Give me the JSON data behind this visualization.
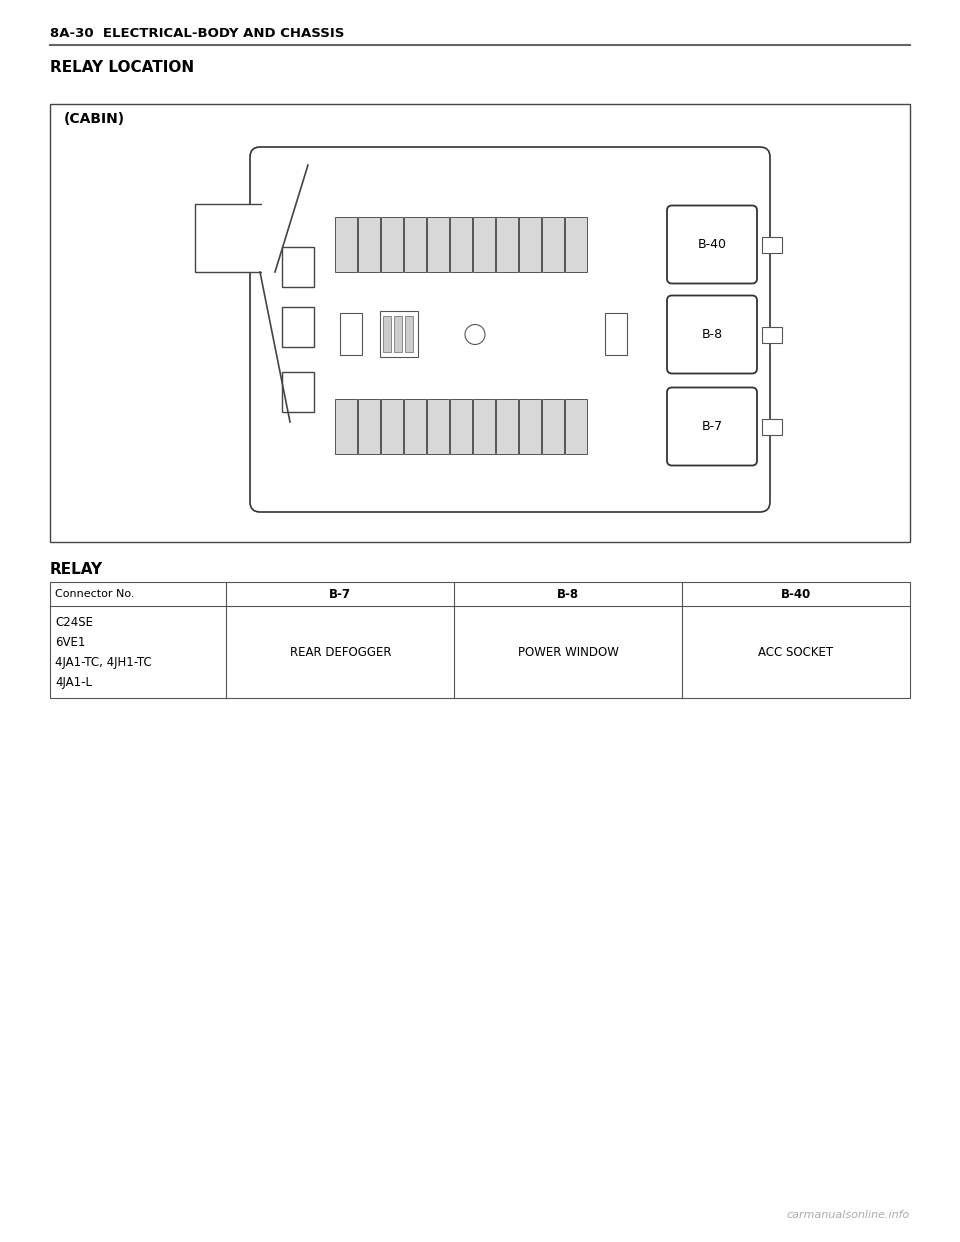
{
  "page_header": "8A-30  ELECTRICAL-BODY AND CHASSIS",
  "section_title": "RELAY LOCATION",
  "cabin_label": "(CABIN)",
  "relay_section_title": "RELAY",
  "table_headers": [
    "Connector No.",
    "B-7",
    "B-8",
    "B-40"
  ],
  "table_row1_col0": [
    "C24SE",
    "6VE1",
    "4JA1-TC, 4JH1-TC",
    "4JA1-L"
  ],
  "table_row1_col1": "REAR DEFOGGER",
  "table_row1_col2": "POWER WINDOW",
  "table_row1_col3": "ACC SOCKET",
  "relay_labels": [
    "B-40",
    "B-8",
    "B-7"
  ],
  "bg_color": "#ffffff",
  "line_color": "#000000",
  "header_line_color": "#555555",
  "watermark_text": "carmanualsonline.info",
  "fuse_color": "#d8d8d8"
}
